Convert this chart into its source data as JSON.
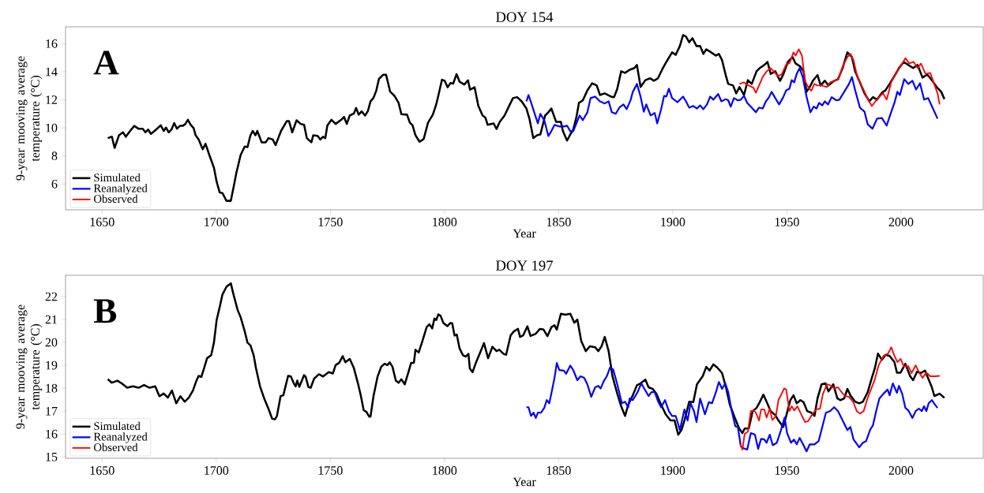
{
  "chart_data": [
    {
      "type": "line",
      "title": "DOY 154",
      "xlabel": "Year",
      "ylabel": "9-year mooving average temperature (°C)",
      "annotations": [
        "A"
      ],
      "legend": "bottom left",
      "xlim": [
        1634,
        2036
      ],
      "ylim": [
        4.16,
        17.2
      ],
      "xticks": [
        1650,
        1700,
        1750,
        1800,
        1850,
        1900,
        1950,
        2000
      ],
      "yticks": [
        6,
        8,
        10,
        12,
        14,
        16
      ],
      "series": [
        {
          "name": "Simulated",
          "color": "#000000",
          "x": [
            1652.5,
            1654.3,
            1655.5,
            1657.4,
            1659.2,
            1660.4,
            1662.3,
            1664.1,
            1665.9,
            1667.8,
            1669,
            1670.2,
            1671.4,
            1673.3,
            1675.7,
            1677,
            1678,
            1679.2,
            1680.4,
            1681.6,
            1682.8,
            1684.1,
            1685.3,
            1686.5,
            1687.6,
            1688.8,
            1690.1,
            1691,
            1692.3,
            1694.1,
            1695.3,
            1697.2,
            1699,
            1700.2,
            1701.5,
            1702.7,
            1704.5,
            1706.4,
            1707.6,
            1708.8,
            1710.7,
            1712.5,
            1713.7,
            1715,
            1716,
            1717.2,
            1718,
            1719.9,
            1721.7,
            1722.9,
            1724.8,
            1726,
            1728.4,
            1730.9,
            1731.9,
            1733.3,
            1735.2,
            1737,
            1738.5,
            1739.7,
            1741.7,
            1742.5,
            1744.4,
            1745.6,
            1746.8,
            1747.8,
            1748.7,
            1750.5,
            1752.3,
            1754.8,
            1756,
            1757.2,
            1758.5,
            1760.3,
            1761.3,
            1762.4,
            1763.7,
            1765.2,
            1766.4,
            1767.6,
            1768.9,
            1770.1,
            1771.3,
            1773.2,
            1774.4,
            1776.2,
            1778.1,
            1779.9,
            1781.1,
            1783.6,
            1784.8,
            1786,
            1787.3,
            1789.1,
            1790.9,
            1792.8,
            1794.9,
            1796.4,
            1797.7,
            1798.9,
            1800.1,
            1801.4,
            1802.6,
            1803.8,
            1805.3,
            1806.6,
            1808.7,
            1810.3,
            1811.2,
            1813.2,
            1814.8,
            1816.7,
            1817.9,
            1818.9,
            1821.5,
            1822.8,
            1824.2,
            1826.3,
            1828.3,
            1830,
            1831.8,
            1833.8,
            1835.9,
            1837.2,
            1838.9,
            1840.7,
            1842,
            1844.1,
            1845.5,
            1846.8,
            1848.9,
            1851,
            1851.9,
            1853.7,
            1855.1,
            1856.4,
            1857.8,
            1858.9,
            1860.6,
            1862.6,
            1864.7,
            1866.7,
            1868.1,
            1870.2,
            1872.9,
            1874.3,
            1875.7,
            1877.4,
            1879.1,
            1881.1,
            1883.2,
            1884.3,
            1885.9,
            1888,
            1890.1,
            1891.7,
            1893.5,
            1895.3,
            1897.2,
            1899.7,
            1901.3,
            1903.1,
            1904.5,
            1905.8,
            1907.2,
            1908.6,
            1910.4,
            1912,
            1913.4,
            1914.7,
            1916.8,
            1918.9,
            1920.2,
            1921.6,
            1923.3,
            1924.3,
            1926.4,
            1927.8,
            1929.2,
            1931.2,
            1932.9,
            1934.6,
            1936.7,
            1938.1,
            1940.1,
            1941.5,
            1942.9,
            1944.9,
            1947,
            1948.4,
            1950.4,
            1952.5,
            1953.8,
            1955.9,
            1957.3,
            1958.6,
            1960,
            1961.4,
            1963.4,
            1964.8,
            1966.6,
            1968.2,
            1970.3,
            1972.4,
            1974.4,
            1976.5,
            1978.5,
            1979.9,
            1982,
            1984,
            1986.1,
            1987.7,
            1989.5,
            1991.6,
            1993.2,
            1995,
            1997.1,
            1999.1,
            2001.2,
            2003.2,
            2005.3,
            2007.3,
            2009.4,
            2011.5,
            2013.5,
            2015.6,
            2017.6,
            2019
          ],
          "values": [
            9.27,
            9.37,
            8.57,
            9.47,
            9.68,
            9.37,
            9.78,
            10.14,
            9.94,
            9.94,
            9.68,
            9.88,
            9.57,
            9.82,
            10.18,
            9.78,
            10.02,
            9.68,
            9.88,
            10.34,
            9.94,
            10.14,
            10.14,
            10.28,
            10.58,
            10.22,
            9.98,
            9.47,
            9.17,
            8.47,
            8.87,
            7.97,
            7.17,
            6.16,
            5.4,
            5.36,
            4.8,
            4.8,
            5.76,
            6.77,
            8.07,
            8.67,
            8.63,
            9.47,
            9.78,
            9.47,
            9.78,
            8.97,
            8.97,
            9.27,
            9.17,
            8.77,
            9.78,
            10.48,
            10.48,
            9.68,
            10.54,
            10.28,
            10.22,
            9.27,
            8.97,
            9.47,
            9.43,
            9.17,
            9.37,
            9.27,
            10.18,
            10.58,
            10.28,
            10.58,
            10.78,
            10.28,
            10.88,
            11.02,
            11.42,
            10.94,
            11.18,
            10.88,
            11.18,
            11.88,
            12.14,
            12.64,
            13.49,
            13.79,
            13.79,
            12.58,
            12.28,
            11.78,
            10.98,
            10.94,
            10.38,
            10.18,
            9.47,
            9.01,
            9.21,
            10.38,
            10.94,
            11.68,
            12.58,
            13.43,
            13.35,
            12.89,
            13.19,
            13.15,
            13.83,
            13.29,
            13.09,
            13.39,
            12.72,
            12.89,
            11.58,
            10.88,
            10.74,
            10.22,
            10.32,
            9.92,
            10.43,
            10.88,
            11.56,
            12.12,
            12.19,
            11.89,
            11.38,
            10.66,
            9.27,
            9.49,
            9.53,
            10.88,
            11.11,
            11.38,
            10.43,
            10.43,
            9.76,
            9.09,
            9.53,
            9.87,
            10.77,
            11.78,
            11.96,
            12.68,
            13.18,
            13.02,
            12.34,
            12.46,
            12.23,
            12.19,
            12.79,
            14.03,
            13.92,
            14.14,
            14.26,
            14.48,
            12.91,
            13.4,
            13.53,
            13.36,
            13.53,
            14.14,
            14.7,
            15.38,
            15.2,
            15.83,
            16.61,
            16.5,
            16.1,
            16.39,
            15.83,
            15.83,
            15.27,
            15.6,
            15.38,
            15.15,
            15.27,
            14.82,
            13.69,
            13.13,
            13.02,
            12.46,
            12.91,
            12.34,
            13.4,
            13.13,
            14.03,
            14.26,
            14.48,
            14.7,
            13.85,
            14.03,
            13.36,
            13.8,
            14.7,
            15.04,
            14.59,
            14.37,
            14.03,
            12.57,
            12.91,
            13.36,
            13.76,
            13.02,
            13.36,
            13.02,
            13.31,
            13.47,
            14.26,
            15.38,
            15.04,
            14.03,
            13.24,
            12.46,
            11.89,
            12.19,
            12.01,
            12.5,
            12.68,
            13.13,
            13.69,
            14.26,
            14.7,
            14.48,
            14.26,
            14.48,
            13.58,
            13.8,
            13.4,
            12.91,
            12.57,
            12.05
          ]
        },
        {
          "name": "Reanalyzed",
          "color": "#0000ff",
          "x": [
            1835.9,
            1836.8,
            1837.9,
            1839.3,
            1840.9,
            1842,
            1843.7,
            1845.5,
            1846.8,
            1848.2,
            1850.3,
            1852.3,
            1853.7,
            1855.1,
            1856.4,
            1857.8,
            1859.2,
            1860.6,
            1862.6,
            1864,
            1866,
            1868.1,
            1870.2,
            1871.9,
            1873.3,
            1875,
            1876.6,
            1878.4,
            1879.8,
            1881.6,
            1882.5,
            1884.3,
            1885.9,
            1887.3,
            1888.4,
            1890.3,
            1892.1,
            1893.2,
            1894.9,
            1896.2,
            1897.2,
            1898.3,
            1899.7,
            1902.1,
            1904.5,
            1905.8,
            1907.2,
            1909,
            1910.6,
            1912,
            1913.4,
            1915,
            1916.4,
            1917.8,
            1919.9,
            1921.3,
            1923.3,
            1924.3,
            1925.4,
            1926.8,
            1928.5,
            1929.8,
            1931.2,
            1932.6,
            1934.6,
            1936.4,
            1937.8,
            1939.4,
            1940.8,
            1942.2,
            1943.3,
            1944.9,
            1946.6,
            1948.4,
            1949.7,
            1951.1,
            1952.1,
            1953.2,
            1954.3,
            1955.6,
            1957,
            1958.6,
            1960.3,
            1961.7,
            1963,
            1964.1,
            1965.5,
            1966.6,
            1968,
            1969.6,
            1971.7,
            1973,
            1975.1,
            1977.2,
            1978.5,
            1979.9,
            1982,
            1984,
            1985.4,
            1987.5,
            1989.5,
            1991.6,
            1993.7,
            1995.4,
            1997.1,
            1998.4,
            1999.5,
            2001.4,
            2003.2,
            2005,
            2006.6,
            2008.3,
            2010.1,
            2011.9,
            2013.8,
            2016
          ],
          "values": [
            11.89,
            12.34,
            11.83,
            11.11,
            10.32,
            11.0,
            10.55,
            9.42,
            9.76,
            10.21,
            10.1,
            10.1,
            10.16,
            9.76,
            9.76,
            10.32,
            10.88,
            10.55,
            11.11,
            12.12,
            12.23,
            11.89,
            11.74,
            11.89,
            11.11,
            11.0,
            11.44,
            11.67,
            11.33,
            12.01,
            12.57,
            13.13,
            12.23,
            11.15,
            11.67,
            10.88,
            11.06,
            10.32,
            11.33,
            12.28,
            12.23,
            12.79,
            12.12,
            11.83,
            12.23,
            11.89,
            11.44,
            11.56,
            11.38,
            11.6,
            11.33,
            11.67,
            12.23,
            12.01,
            12.41,
            11.89,
            12.05,
            11.96,
            11.51,
            12.12,
            11.96,
            12.01,
            12.28,
            11.78,
            11.44,
            11.11,
            11.44,
            11.38,
            11.89,
            12.19,
            12.57,
            12.12,
            11.67,
            12.19,
            12.68,
            12.79,
            13.4,
            13.24,
            13.85,
            14.26,
            13.58,
            12.23,
            11.11,
            11.51,
            11.38,
            11.78,
            11.6,
            11.89,
            11.67,
            12.19,
            11.96,
            12.01,
            12.57,
            13.13,
            13.62,
            12.68,
            11.44,
            11.15,
            10.25,
            9.94,
            10.66,
            10.7,
            10.16,
            11.0,
            11.78,
            12.57,
            12.34,
            13.47,
            13.13,
            13.36,
            12.73,
            13.18,
            12.01,
            12.12,
            11.44,
            10.66
          ]
        },
        {
          "name": "Observed",
          "color": "#ff0000",
          "x": [
            1929.2,
            1931.2,
            1933.3,
            1935.3,
            1936.4,
            1938.1,
            1939.4,
            1941.1,
            1942.9,
            1944.2,
            1946,
            1947.7,
            1949.7,
            1951.1,
            1952.9,
            1953.8,
            1955.2,
            1956.6,
            1957.9,
            1959.3,
            1960.7,
            1962,
            1963.4,
            1965.2,
            1967.6,
            1968.9,
            1971,
            1972.6,
            1974.4,
            1976.5,
            1977.9,
            1979.2,
            1980.6,
            1982,
            1984,
            1985.4,
            1987.2,
            1988.8,
            1990.9,
            1992.2,
            1993.7,
            1995.7,
            1997.8,
            1999.8,
            2001.9,
            2003.6,
            2005.5,
            2007.3,
            2008.7,
            2010.7,
            2012.8,
            2014.5,
            2016,
            2016.9
          ],
          "values": [
            13.13,
            13.24,
            13.02,
            12.86,
            12.5,
            13.13,
            13.62,
            14.03,
            14.26,
            14.03,
            13.69,
            13.8,
            14.52,
            14.59,
            15.38,
            15.15,
            15.6,
            15.15,
            13.36,
            12.91,
            12.64,
            13.13,
            13.02,
            13.02,
            12.91,
            13.24,
            13.36,
            13.47,
            14.37,
            15.04,
            15.27,
            14.82,
            13.8,
            13.24,
            12.57,
            12.05,
            11.56,
            11.89,
            12.28,
            12.46,
            12.01,
            13.24,
            13.92,
            14.37,
            14.97,
            14.59,
            14.7,
            14.26,
            14.59,
            13.85,
            13.92,
            13.13,
            12.46,
            11.67
          ]
        }
      ]
    },
    {
      "type": "line",
      "title": "DOY 197",
      "xlabel": "Year",
      "ylabel": "9-year mooving average temperature (°C)",
      "annotations": [
        "B"
      ],
      "legend": "bottom left",
      "xlim": [
        1634,
        2036
      ],
      "ylim": [
        14.94,
        22.93
      ],
      "xticks": [
        1650,
        1700,
        1750,
        1800,
        1850,
        1900,
        1950,
        2000
      ],
      "yticks": [
        15,
        16,
        17,
        18,
        19,
        20,
        21,
        22
      ],
      "series": [
        {
          "name": "Simulated",
          "color": "#000000",
          "x": [
            1652.5,
            1654.3,
            1656.7,
            1658.6,
            1661,
            1663.5,
            1666,
            1668.4,
            1670.8,
            1673.3,
            1675.1,
            1677,
            1678.8,
            1680.6,
            1682.5,
            1684.3,
            1686.2,
            1688,
            1689.8,
            1691.1,
            1692.3,
            1693.5,
            1694.7,
            1696,
            1697.8,
            1699,
            1700.2,
            1701.5,
            1702.7,
            1704.5,
            1706.4,
            1707.6,
            1709.4,
            1710.7,
            1712.5,
            1713.7,
            1715,
            1716.4,
            1717.4,
            1719.2,
            1721.1,
            1722.9,
            1724.5,
            1725.7,
            1726.6,
            1728.2,
            1729.4,
            1731.5,
            1732.7,
            1734,
            1734.8,
            1735.5,
            1736.4,
            1738.5,
            1739.2,
            1740.4,
            1741.4,
            1742.9,
            1745,
            1746.8,
            1749.3,
            1751.1,
            1752.3,
            1753.9,
            1755.4,
            1756.6,
            1758.5,
            1760.3,
            1762.1,
            1763.4,
            1764.6,
            1765.8,
            1767,
            1767.6,
            1768.9,
            1770.7,
            1772.3,
            1773.8,
            1775,
            1776,
            1777.2,
            1778.7,
            1779.9,
            1781.1,
            1782.6,
            1784.2,
            1785.4,
            1786.6,
            1787.3,
            1788.7,
            1790.3,
            1792.2,
            1793.4,
            1794.6,
            1795.6,
            1796.4,
            1797.3,
            1798.3,
            1799.5,
            1801.3,
            1802.6,
            1803.4,
            1804.4,
            1805.4,
            1806.6,
            1808.1,
            1809.3,
            1810.5,
            1811.1,
            1812.3,
            1813.6,
            1815.4,
            1817.3,
            1819.1,
            1821,
            1822.8,
            1824,
            1825.9,
            1827,
            1829,
            1830.4,
            1832.2,
            1833.1,
            1834.5,
            1836.3,
            1837.7,
            1840,
            1841.8,
            1843.4,
            1845.1,
            1846.8,
            1848.2,
            1849.2,
            1851,
            1853,
            1855.1,
            1856.9,
            1858.2,
            1859.9,
            1861.9,
            1863.7,
            1866,
            1867.4,
            1868.8,
            1870.2,
            1871.9,
            1873.6,
            1875.7,
            1877.4,
            1879.1,
            1880.5,
            1882.5,
            1884.3,
            1885.9,
            1888,
            1889.4,
            1891.2,
            1892.8,
            1894.9,
            1896.9,
            1899,
            1900.8,
            1902.4,
            1903.8,
            1905.1,
            1907.2,
            1909,
            1910.6,
            1913.1,
            1914.7,
            1916.1,
            1917.8,
            1919.5,
            1921.6,
            1923.3,
            1925,
            1927.1,
            1929.1,
            1930.5,
            1931.5,
            1933.3,
            1935,
            1936.7,
            1938.1,
            1939.7,
            1941.1,
            1942.9,
            1944.9,
            1946.3,
            1948.4,
            1949.7,
            1951.5,
            1952.9,
            1954.3,
            1955.9,
            1957.3,
            1958.9,
            1960.7,
            1962.1,
            1963.4,
            1965.2,
            1966.9,
            1968.2,
            1970.3,
            1972.1,
            1973.5,
            1975.1,
            1976.5,
            1977.8,
            1979.9,
            1981.7,
            1983.3,
            1985.4,
            1987.2,
            1988.5,
            1989.9,
            1991.6,
            1993.2,
            1995,
            1997.1,
            1998.2,
            1999.8,
            2001.9,
            2004,
            2005.3,
            2007,
            2008.7,
            2010.5,
            2012.1,
            2013.5,
            2014.6,
            2016.9,
            2019
          ],
          "values": [
            18.39,
            18.24,
            18.33,
            18.21,
            18.02,
            18.08,
            18.02,
            18.14,
            18.02,
            18.08,
            17.65,
            17.77,
            17.59,
            17.9,
            17.34,
            17.65,
            17.41,
            17.59,
            17.9,
            18.27,
            18.54,
            18.49,
            18.88,
            19.31,
            19.44,
            19.99,
            20.98,
            21.53,
            22.08,
            22.43,
            22.58,
            22.08,
            21.41,
            21.1,
            20.48,
            19.99,
            19.87,
            19.44,
            18.88,
            18.08,
            17.53,
            17.1,
            16.67,
            16.64,
            16.79,
            17.65,
            17.69,
            18.54,
            18.51,
            18.21,
            18.08,
            18.33,
            18.06,
            18.57,
            18.49,
            18.05,
            18.02,
            18.42,
            18.61,
            18.51,
            18.7,
            18.64,
            19.01,
            19.11,
            19.4,
            19.13,
            19.28,
            18.88,
            18.21,
            17.65,
            17.04,
            16.97,
            16.76,
            16.76,
            17.65,
            18.51,
            18.94,
            19.07,
            19.01,
            19.13,
            18.94,
            18.33,
            18.24,
            18.39,
            18.17,
            18.7,
            19.11,
            19.11,
            19.68,
            19.56,
            20.05,
            20.67,
            20.79,
            20.61,
            21.04,
            20.98,
            21.22,
            21.16,
            20.85,
            20.71,
            20.85,
            20.83,
            20.3,
            20.34,
            19.74,
            19.44,
            19.38,
            19.5,
            18.86,
            18.7,
            19.07,
            19.5,
            19.97,
            19.31,
            19.81,
            19.62,
            19.68,
            19.5,
            19.46,
            20.31,
            20.48,
            20.59,
            20.24,
            20.31,
            20.7,
            20.28,
            20.38,
            20.59,
            20.56,
            20.27,
            20.66,
            20.75,
            20.56,
            21.25,
            21.21,
            21.25,
            20.86,
            21.0,
            20.06,
            19.62,
            19.83,
            19.79,
            19.62,
            19.83,
            20.24,
            19.62,
            18.52,
            17.76,
            17.21,
            16.79,
            17.28,
            17.69,
            18.13,
            18.21,
            18.38,
            18.04,
            17.97,
            17.76,
            17.28,
            16.86,
            16.59,
            16.59,
            15.97,
            16.17,
            16.59,
            17.41,
            17.39,
            18.17,
            18.52,
            18.93,
            18.77,
            19.04,
            18.9,
            18.66,
            18.04,
            17.28,
            16.73,
            16.24,
            16.04,
            16.24,
            16.24,
            17.0,
            17.14,
            17.39,
            17.72,
            17.41,
            17.0,
            16.83,
            16.59,
            16.31,
            16.79,
            17.48,
            17.69,
            17.34,
            17.48,
            17.39,
            17.0,
            16.93,
            16.79,
            17.55,
            18.17,
            18.21,
            17.86,
            18.17,
            17.55,
            17.48,
            17.55,
            17.97,
            17.69,
            17.41,
            17.34,
            17.41,
            17.83,
            18.45,
            18.86,
            19.51,
            19.24,
            19.46,
            19.41,
            19.14,
            18.68,
            18.68,
            19.07,
            18.52,
            18.35,
            18.72,
            18.66,
            18.77,
            18.38,
            18.04,
            17.66,
            17.76,
            17.58
          ]
        },
        {
          "name": "Reanalyzed",
          "color": "#0000ff",
          "x": [
            1835.9,
            1836.8,
            1837.9,
            1839,
            1840,
            1840.9,
            1842.3,
            1843.7,
            1844.8,
            1845.9,
            1846.8,
            1848.2,
            1849.2,
            1850.3,
            1852.3,
            1853.3,
            1855.1,
            1856.4,
            1858.2,
            1859.6,
            1861.2,
            1862.6,
            1864.3,
            1866,
            1867.4,
            1868.4,
            1869.8,
            1871.1,
            1872.5,
            1873.9,
            1875.7,
            1877.7,
            1879.1,
            1880.5,
            1881.1,
            1882.5,
            1884.6,
            1886.2,
            1888,
            1889.4,
            1890.7,
            1892.1,
            1893.5,
            1894.9,
            1896.6,
            1898.3,
            1899.7,
            1901.3,
            1903.1,
            1905.1,
            1906.5,
            1907.8,
            1909.3,
            1910.4,
            1912,
            1914.1,
            1915.8,
            1917.2,
            1918.9,
            1920.2,
            1921.6,
            1923,
            1924.3,
            1925.7,
            1927.4,
            1928.5,
            1929.8,
            1931.2,
            1932.6,
            1934.2,
            1936,
            1937.4,
            1938.7,
            1940.1,
            1941.1,
            1942.5,
            1943.8,
            1945.6,
            1947.4,
            1949,
            1950.1,
            1951.8,
            1953.1,
            1954.3,
            1955.6,
            1957.3,
            1958.6,
            1960,
            1962.1,
            1963.9,
            1965.5,
            1967.1,
            1968.9,
            1970.7,
            1972.4,
            1974.4,
            1976.5,
            1977.8,
            1979.2,
            1981.7,
            1983.3,
            1984.7,
            1986.4,
            1987.7,
            1989.1,
            1990.5,
            1992.3,
            1994.1,
            1995,
            1996.4,
            1998.2,
            1999.1,
            2000.5,
            2001.9,
            2003.2,
            2005,
            2006.4,
            2007.8,
            2009.1,
            2010.1,
            2011.1,
            2012.1,
            2013.5,
            2014.9,
            2016
          ],
          "values": [
            17.17,
            17.17,
            16.79,
            16.93,
            16.7,
            16.93,
            16.93,
            17.14,
            17.48,
            17.34,
            17.76,
            18.45,
            19.1,
            18.79,
            18.77,
            18.63,
            18.99,
            18.79,
            18.35,
            18.52,
            18.45,
            18.17,
            17.62,
            18.04,
            18.1,
            17.99,
            18.31,
            18.52,
            18.9,
            18.82,
            18.17,
            17.34,
            17.41,
            17.17,
            17.55,
            17.48,
            17.83,
            18.21,
            17.9,
            17.66,
            17.83,
            17.83,
            17.44,
            17.17,
            17.48,
            17.0,
            16.79,
            16.79,
            16.17,
            17.07,
            16.59,
            17.34,
            17.0,
            16.52,
            17.55,
            16.86,
            17.39,
            17.34,
            17.83,
            18.27,
            17.97,
            18.21,
            17.83,
            17.07,
            16.34,
            16.31,
            15.48,
            15.37,
            15.32,
            16.04,
            15.97,
            15.35,
            15.79,
            15.76,
            15.62,
            15.97,
            15.51,
            15.62,
            16.17,
            16.72,
            16.04,
            15.62,
            15.76,
            15.55,
            15.83,
            15.51,
            15.24,
            15.55,
            15.55,
            15.69,
            16.31,
            16.93,
            17.0,
            17.17,
            17.0,
            16.59,
            16.17,
            16.31,
            15.76,
            15.42,
            15.62,
            15.69,
            16.17,
            16.38,
            17.0,
            17.55,
            17.76,
            17.94,
            17.69,
            18.21,
            17.8,
            18.1,
            17.76,
            17.14,
            17.03,
            16.7,
            17.0,
            17.11,
            17.0,
            17.21,
            17.0,
            17.34,
            17.48,
            17.28,
            17.14
          ]
        },
        {
          "name": "Observed",
          "color": "#ff0000",
          "x": [
            1929.6,
            1930.5,
            1931.5,
            1932.9,
            1934.2,
            1935.6,
            1936.4,
            1937.8,
            1938.7,
            1940.1,
            1941.1,
            1942.5,
            1943.6,
            1945.2,
            1946.3,
            1947.7,
            1948.8,
            1949.7,
            1951.1,
            1952.1,
            1953.2,
            1954.6,
            1956.6,
            1958,
            1959.3,
            1961.1,
            1962.8,
            1964.5,
            1965.8,
            1967.6,
            1968.9,
            1970.7,
            1972.4,
            1973.7,
            1975.4,
            1977.2,
            1979,
            1980.6,
            1982,
            1983.6,
            1985.4,
            1986.8,
            1988.5,
            1990.2,
            1992.3,
            1994.3,
            1995.7,
            1997.1,
            1998.4,
            1999.8,
            2001.2,
            2003.2,
            2004.6,
            2006.4,
            2008,
            2009.4,
            2011.1,
            2012.8,
            2014.9,
            2016.9
          ],
          "values": [
            15.55,
            15.32,
            16.01,
            16.1,
            17.0,
            17.03,
            16.93,
            16.59,
            17.07,
            17.07,
            16.72,
            17.11,
            16.61,
            16.79,
            17.48,
            17.76,
            17.99,
            17.94,
            17.0,
            17.21,
            17.03,
            17.21,
            16.79,
            16.52,
            16.56,
            16.86,
            17.07,
            17.11,
            17.76,
            18.17,
            18.13,
            17.99,
            18.04,
            17.86,
            17.66,
            17.62,
            17.41,
            17.0,
            16.89,
            17.0,
            17.58,
            17.94,
            18.38,
            19.0,
            19.41,
            19.51,
            19.79,
            19.41,
            19.14,
            19.28,
            18.96,
            18.96,
            18.66,
            19.0,
            18.68,
            18.45,
            18.68,
            18.52,
            18.52,
            18.54
          ]
        }
      ]
    }
  ]
}
